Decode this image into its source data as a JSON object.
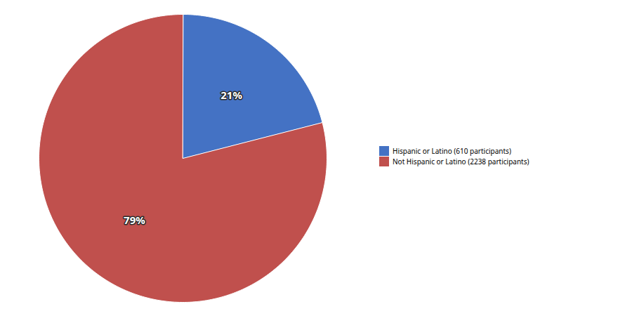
{
  "chart_data": {
    "type": "pie",
    "categories": [
      "Hispanic or Latino (610 participants)",
      "Not Hispanic or Latino (2238 participants)"
    ],
    "values": [
      21,
      79
    ],
    "value_labels": [
      "21%",
      "79%"
    ],
    "colors": [
      "#4472C4",
      "#C0504D"
    ],
    "data_labels": true,
    "legend": "right"
  }
}
